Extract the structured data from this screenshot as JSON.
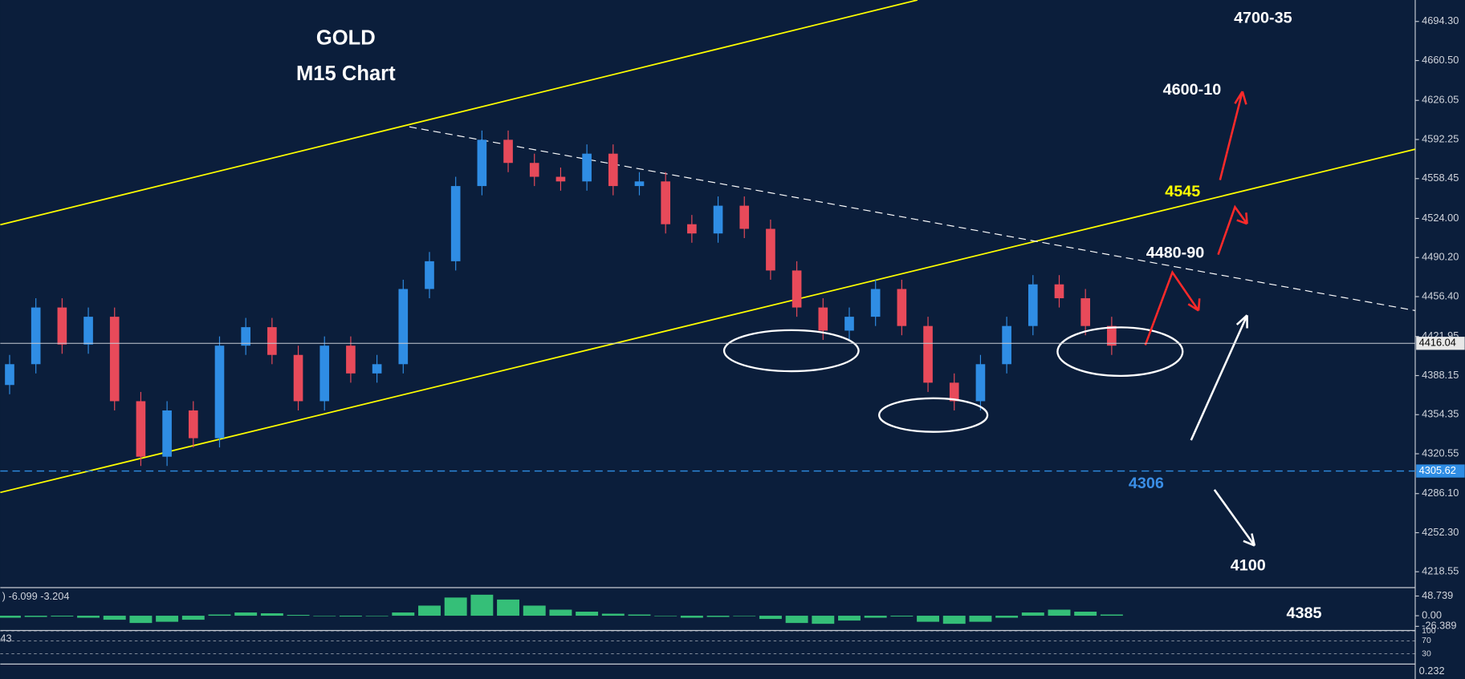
{
  "chart_data": {
    "type": "candlestick",
    "title": "GOLD",
    "subtitle": "M15 Chart",
    "up_color": "#2f8de4",
    "down_color": "#e84a5a",
    "open": [
      4380,
      4398,
      4447,
      4415,
      4439,
      4366,
      4318,
      4358,
      4334,
      4414,
      4430,
      4406,
      4366,
      4414,
      4390,
      4398,
      4463,
      4487,
      4552,
      4592,
      4572,
      4560,
      4556,
      4580,
      4552,
      4556,
      4519,
      4511,
      4535,
      4515,
      4479,
      4447,
      4427,
      4439,
      4463,
      4431,
      4382,
      4366,
      4398,
      4431,
      4467,
      4455,
      4431
    ],
    "high": [
      4406,
      4455,
      4455,
      4447,
      4447,
      4374,
      4366,
      4366,
      4422,
      4438,
      4438,
      4414,
      4422,
      4422,
      4406,
      4471,
      4495,
      4560,
      4600,
      4600,
      4580,
      4568,
      4588,
      4588,
      4564,
      4564,
      4527,
      4543,
      4543,
      4523,
      4487,
      4455,
      4447,
      4471,
      4471,
      4439,
      4390,
      4406,
      4439,
      4475,
      4475,
      4463,
      4439
    ],
    "low": [
      4372,
      4390,
      4407,
      4407,
      4358,
      4310,
      4310,
      4326,
      4326,
      4406,
      4398,
      4358,
      4358,
      4382,
      4382,
      4390,
      4455,
      4479,
      4544,
      4564,
      4552,
      4548,
      4548,
      4544,
      4544,
      4511,
      4503,
      4503,
      4507,
      4471,
      4439,
      4419,
      4419,
      4431,
      4423,
      4374,
      4358,
      4358,
      4390,
      4423,
      4447,
      4423,
      4406
    ],
    "close": [
      4398,
      4447,
      4415,
      4439,
      4366,
      4318,
      4358,
      4334,
      4414,
      4430,
      4406,
      4366,
      4414,
      4390,
      4398,
      4463,
      4487,
      4552,
      4592,
      4572,
      4560,
      4556,
      4580,
      4552,
      4556,
      4519,
      4511,
      4535,
      4515,
      4479,
      4447,
      4427,
      4439,
      4463,
      4431,
      4382,
      4366,
      4398,
      4431,
      4467,
      4455,
      4431,
      4414
    ],
    "ylim": [
      4206.45,
      4712.85
    ],
    "yticks": [
      {
        "value": 4694.3,
        "label": "4694.30"
      },
      {
        "value": 4660.5,
        "label": "4660.50"
      },
      4626.05,
      4592.25,
      4558.45,
      {
        "value": 4524,
        "label": "4524.00"
      },
      {
        "value": 4490.2,
        "label": "4490.20"
      },
      {
        "value": 4456.4,
        "label": "4456.40"
      },
      4421.95,
      4388.15,
      4354.35,
      4320.55,
      {
        "value": 4286.1,
        "label": "4286.10"
      },
      {
        "value": 4252.3,
        "label": "4252.30"
      },
      4218.55
    ],
    "current_price": 4416.04,
    "support_level": 4305.62,
    "annotations": [
      {
        "text": "4700-35",
        "color": "#ffffff"
      },
      {
        "text": "4600-10",
        "color": "#ffffff"
      },
      {
        "text": "4545",
        "color": "#ffff00"
      },
      {
        "text": "4480-90",
        "color": "#ffffff"
      },
      {
        "text": "4306",
        "color": "#3a8ee6"
      },
      {
        "text": "4100",
        "color": "#ffffff"
      },
      {
        "text": "4385",
        "color": "#ffffff"
      }
    ],
    "macd": {
      "label": ") -6.099 -3.204",
      "color": "#3ddc84",
      "values": [
        -5,
        -3,
        -2,
        -5,
        -10,
        -18,
        -15,
        -10,
        3,
        8,
        6,
        2,
        0,
        -2,
        -1,
        8,
        25,
        45,
        52,
        40,
        25,
        15,
        10,
        5,
        3,
        0,
        -5,
        -3,
        0,
        -8,
        -18,
        -20,
        -12,
        -5,
        -2,
        -15,
        -20,
        -15,
        -5,
        8,
        15,
        10,
        3
      ],
      "ylim": [
        -32,
        65
      ],
      "yticks": [
        48.739,
        {
          "value": 0,
          "label": "0.00"
        },
        -26.389
      ]
    },
    "rsi": {
      "label": "43",
      "ylim": [
        0,
        100
      ],
      "yticks": [
        100,
        70,
        30
      ]
    },
    "volume": {
      "label": "0.232"
    }
  }
}
